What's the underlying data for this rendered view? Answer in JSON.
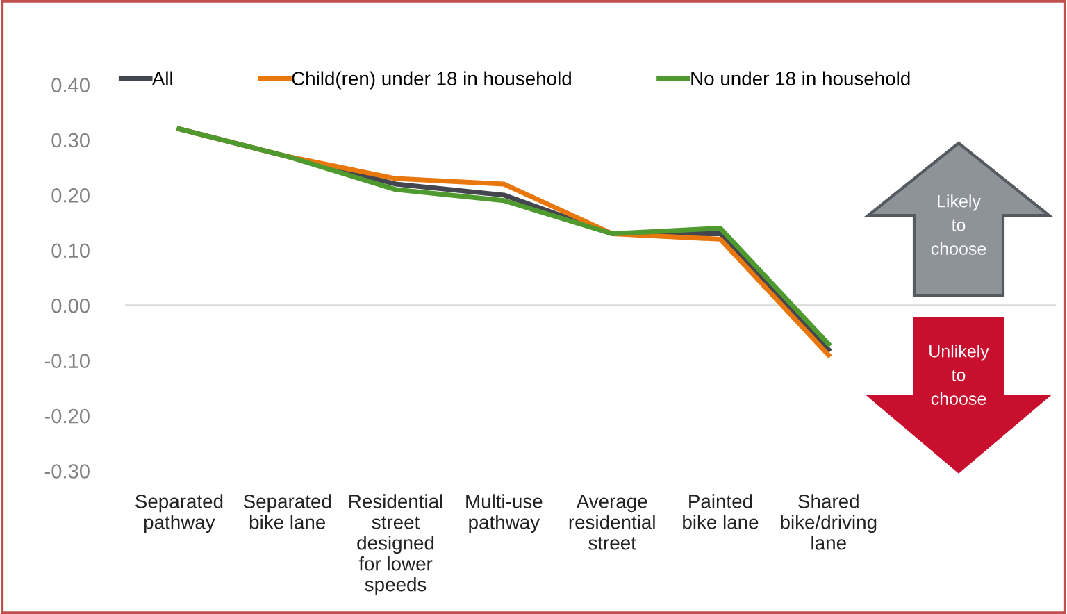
{
  "chart_data": {
    "type": "line",
    "categories": [
      "Separated\npathway",
      "Separated\nbike lane",
      "Residential\nstreet\ndesigned\nfor lower\nspeeds",
      "Multi-use\npathway",
      "Average\nresidential\nstreet",
      "Painted\nbike lane",
      "Shared\nbike/driving\nlane"
    ],
    "series": [
      {
        "name": "All",
        "color": "#44464f",
        "values": [
          0.32,
          0.27,
          0.22,
          0.2,
          0.13,
          0.13,
          -0.08
        ]
      },
      {
        "name": "Child(ren) under 18 in household",
        "color": "#e8770e",
        "values": [
          0.32,
          0.27,
          0.23,
          0.22,
          0.13,
          0.12,
          -0.09
        ]
      },
      {
        "name": "No under 18 in household",
        "color": "#4e9a2f",
        "values": [
          0.32,
          0.27,
          0.21,
          0.19,
          0.13,
          0.14,
          -0.07
        ]
      }
    ],
    "ylim": [
      -0.3,
      0.4
    ],
    "yticks": [
      {
        "value": -0.3,
        "label": "-0.30"
      },
      {
        "value": -0.2,
        "label": "-0.20"
      },
      {
        "value": -0.1,
        "label": "-0.10"
      },
      {
        "value": 0,
        "label": "0.00"
      },
      {
        "value": 0.1,
        "label": "0.10"
      },
      {
        "value": 0.2,
        "label": "0.20"
      },
      {
        "value": 0.3,
        "label": "0.30"
      },
      {
        "value": 0.4,
        "label": "0.40"
      }
    ],
    "ref_lines": [
      {
        "axis": "y",
        "value": 0,
        "color": "#d9d9d9"
      }
    ],
    "annotations": [
      "Likely\nto\nchoose",
      "Unlikely\nto\nchoose"
    ],
    "grid": false,
    "legend": "top",
    "marker": "none",
    "line_style": "solid"
  }
}
